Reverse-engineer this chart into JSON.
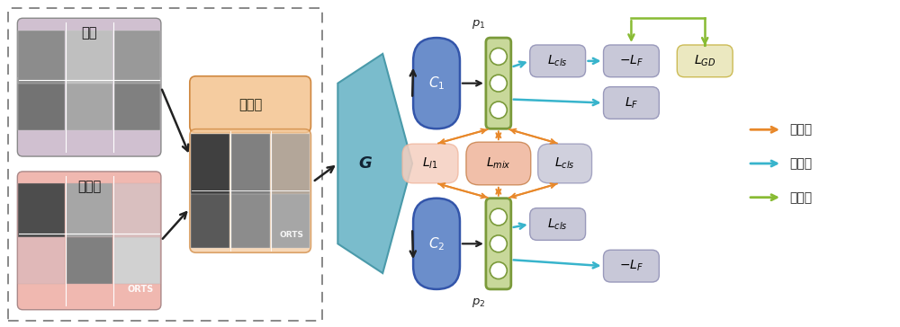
{
  "fig_width": 10.0,
  "fig_height": 3.64,
  "bg_color": "#ffffff",
  "colors": {
    "blue_pill": "#6b8ecb",
    "green_box_fill": "#c8d89a",
    "green_box_edge": "#7a9a3a",
    "pink_light": "#f5cfc0",
    "pink_mid": "#f0b8a0",
    "lavender_box": "#c8c8d8",
    "yellow_box": "#ebe8c0",
    "cyan_arrow": "#38b4cc",
    "orange_arrow": "#e8882a",
    "green_arrow": "#88bb33",
    "teal_shape": "#7abccc",
    "teal_edge": "#4a9aaa",
    "source_bg": "#d0c0d0",
    "target_bg": "#f0b8b0",
    "middle_bg": "#f5cca0",
    "middle_edge": "#d08840",
    "dark": "#222222",
    "gray_img": "#909090",
    "white": "#ffffff"
  },
  "labels": {
    "source": "源域",
    "target": "目标域",
    "middle": "中间域",
    "G": "G",
    "step1": "第一步",
    "step2": "第二步",
    "step3": "第三步"
  }
}
